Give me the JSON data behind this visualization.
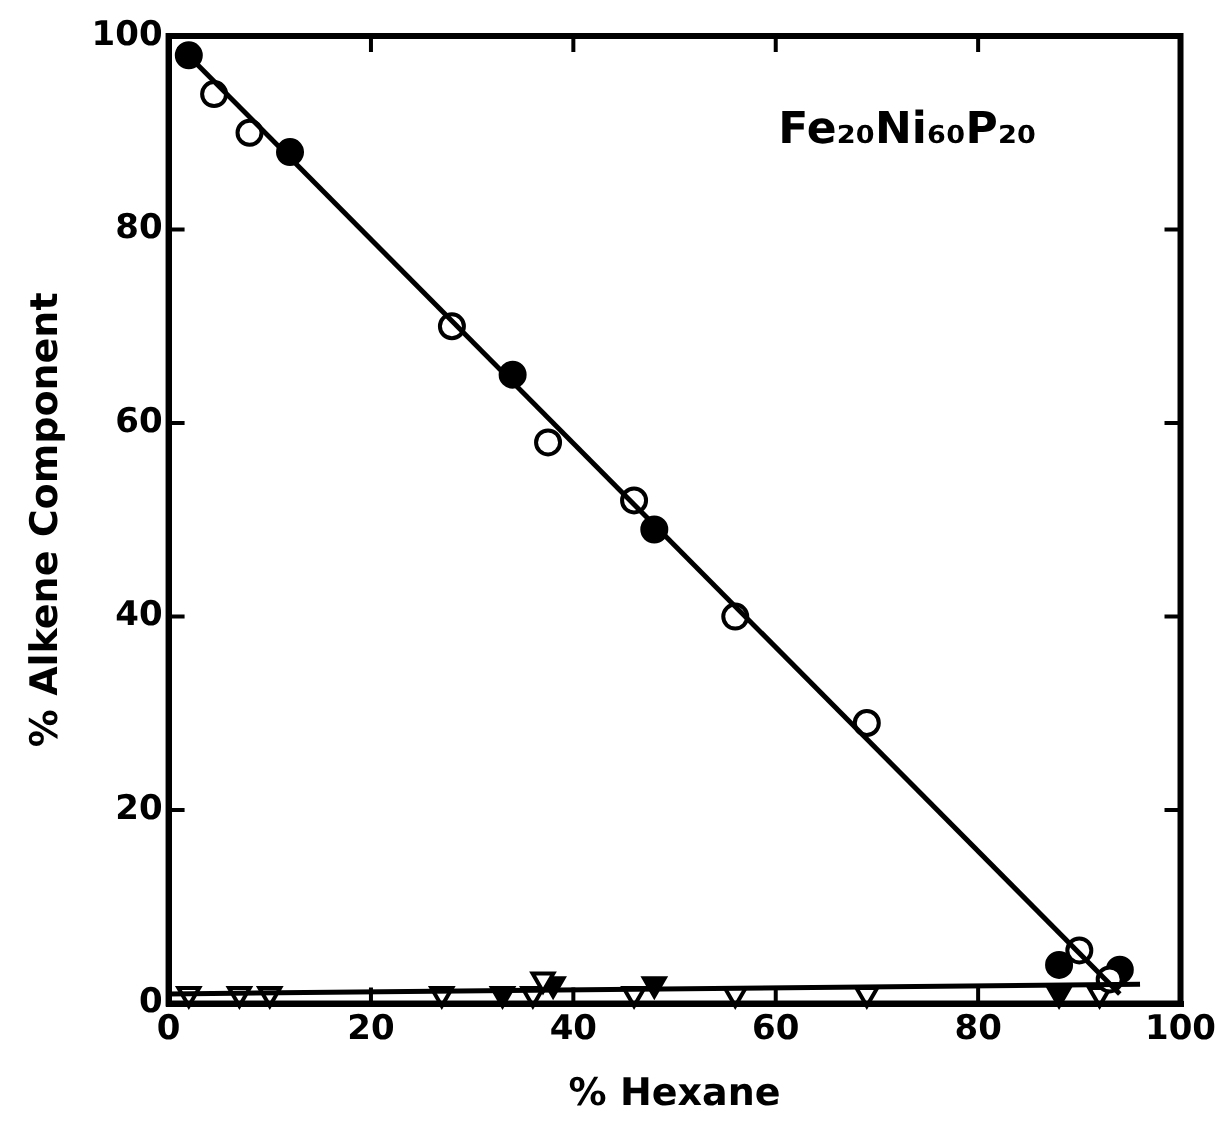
{
  "chart_data": {
    "type": "scatter",
    "xlabel": "% Hexane",
    "ylabel": "% Alkene Component",
    "annotations": [
      "Fe₂₀Ni₆₀P₂₀"
    ],
    "xlim": [
      0,
      100
    ],
    "xticks": [
      0,
      20,
      40,
      60,
      80,
      100
    ],
    "ylim": [
      0,
      100
    ],
    "yticks": [
      0,
      20,
      40,
      60,
      80,
      100
    ],
    "grid": false,
    "legend": false,
    "series": [
      {
        "type": "line",
        "color": "#000000",
        "marker": "none",
        "x": [
          1,
          94
        ],
        "values": [
          99,
          1
        ]
      },
      {
        "type": "line",
        "color": "#000000",
        "marker": "none",
        "x": [
          0,
          96
        ],
        "values": [
          1,
          2
        ]
      },
      {
        "marker": "circle",
        "color": "#ffffff",
        "x": [
          4.5,
          8,
          28,
          37.5,
          46,
          56,
          69,
          90,
          93
        ],
        "values": [
          94,
          90,
          70,
          58,
          52,
          40,
          29,
          5.5,
          2.5
        ]
      },
      {
        "marker": "circle",
        "color": "#000000",
        "x": [
          2,
          12,
          34,
          48,
          88,
          94
        ],
        "values": [
          98,
          88,
          65,
          49,
          4,
          3.5
        ]
      },
      {
        "marker": "triangle",
        "color": "#ffffff",
        "x": [
          2,
          7,
          10,
          27,
          36,
          37,
          46,
          56,
          69,
          92
        ],
        "values": [
          1,
          1,
          1,
          1,
          1,
          2.5,
          1,
          1,
          1,
          1
        ]
      },
      {
        "marker": "triangle",
        "color": "#000000",
        "x": [
          33,
          38,
          48,
          88
        ],
        "values": [
          1,
          2,
          2,
          1
        ]
      }
    ]
  }
}
